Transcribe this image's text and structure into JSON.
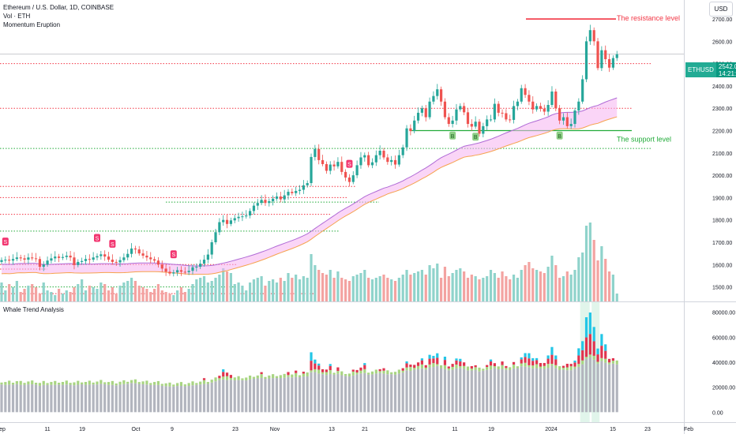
{
  "header": {
    "title": "Ethereum / U.S. Dollar, 1D, COINBASE",
    "indicator1": "Vol · ETH",
    "indicator2": "Momentum Eruption"
  },
  "lower_pane_title": "Whale Trend Analysis",
  "currency_button": "USD",
  "symbol_tag": {
    "symbol": "ETHUSD",
    "price": "2542.02",
    "countdown": "14:21:13"
  },
  "annotations": {
    "resistance": "The resistance level",
    "support": "The support level"
  },
  "signals": {
    "sell": "S",
    "buy": "B"
  },
  "colors": {
    "up": "#26a69a",
    "down": "#ef5350",
    "vol_up": "#8fd3cb",
    "vol_down": "#f3a3a1",
    "resistance": "#f23645",
    "support": "#22ab3a",
    "band_fill": "#f5b3f0",
    "band_upper": "#b06bd6",
    "band_lower": "#f6a34e",
    "whale_gray": "#b2b5be",
    "whale_green": "#a8d582",
    "whale_red": "#e0344e",
    "whale_cyan": "#23c6e6"
  },
  "chart_data": [
    {
      "type": "candlestick",
      "title": "Ethereum / U.S. Dollar, 1D, COINBASE",
      "x_ticks": [
        "ep",
        "11",
        "19",
        "Oct",
        "9",
        "23",
        "Nov",
        "13",
        "21",
        "Dec",
        "11",
        "19",
        "2024",
        "15",
        "23",
        "Feb"
      ],
      "y_ticks": [
        "2700.00",
        "2600.00",
        "2500.00",
        "2400.00",
        "2300.00",
        "2200.00",
        "2100.00",
        "2000.00",
        "1900.00",
        "1800.00",
        "1700.00",
        "1600.00",
        "1500.00"
      ],
      "ylim": [
        1435,
        2785
      ],
      "last_price": 2542.02,
      "resistance_level": 2700,
      "support_level": 2200,
      "close_series": [
        1620,
        1622,
        1618,
        1625,
        1632,
        1628,
        1622,
        1632,
        1628,
        1625,
        1590,
        1600,
        1618,
        1628,
        1636,
        1630,
        1634,
        1640,
        1632,
        1598,
        1612,
        1616,
        1625,
        1622,
        1632,
        1638,
        1646,
        1636,
        1622,
        1612,
        1610,
        1620,
        1632,
        1648,
        1672,
        1668,
        1650,
        1640,
        1632,
        1624,
        1618,
        1600,
        1582,
        1568,
        1560,
        1565,
        1575,
        1568,
        1566,
        1572,
        1588,
        1590,
        1604,
        1622,
        1645,
        1700,
        1745,
        1790,
        1800,
        1782,
        1798,
        1808,
        1814,
        1816,
        1820,
        1840,
        1864,
        1876,
        1890,
        1876,
        1884,
        1895,
        1905,
        1892,
        1910,
        1926,
        1920,
        1930,
        1935,
        1955,
        1965,
        2082,
        2118,
        2068,
        2050,
        2020,
        2048,
        2040,
        2060,
        2015,
        1990,
        1970,
        2000,
        2045,
        2080,
        2090,
        2045,
        2058,
        2090,
        2110,
        2080,
        2060,
        2068,
        2048,
        2090,
        2125,
        2210,
        2198,
        2245,
        2280,
        2300,
        2260,
        2330,
        2355,
        2385,
        2330,
        2260,
        2230,
        2245,
        2295,
        2310,
        2282,
        2230,
        2218,
        2240,
        2186,
        2220,
        2250,
        2250,
        2320,
        2280,
        2278,
        2250,
        2248,
        2310,
        2330,
        2390,
        2360,
        2330,
        2295,
        2310,
        2298,
        2285,
        2315,
        2375,
        2300,
        2245,
        2260,
        2220,
        2230,
        2290,
        2330,
        2430,
        2600,
        2650,
        2600,
        2480,
        2560,
        2520,
        2482,
        2525,
        2542
      ],
      "buy_signals_on_close_index": [
        118,
        124,
        146
      ],
      "sell_signals_on_close_index": [
        1,
        25,
        29,
        45,
        91
      ],
      "volume_series": [
        24,
        14,
        22,
        18,
        26,
        12,
        16,
        20,
        22,
        18,
        10,
        24,
        14,
        12,
        8,
        16,
        10,
        14,
        12,
        18,
        22,
        28,
        14,
        20,
        18,
        16,
        24,
        22,
        14,
        18,
        10,
        20,
        24,
        26,
        30,
        26,
        20,
        18,
        16,
        12,
        16,
        22,
        14,
        12,
        10,
        8,
        14,
        18,
        12,
        16,
        22,
        28,
        30,
        32,
        24,
        26,
        30,
        34,
        42,
        38,
        36,
        22,
        24,
        20,
        14,
        24,
        28,
        30,
        32,
        20,
        26,
        28,
        24,
        30,
        26,
        36,
        30,
        34,
        28,
        32,
        30,
        60,
        46,
        40,
        36,
        34,
        40,
        30,
        38,
        30,
        28,
        26,
        32,
        34,
        36,
        40,
        30,
        28,
        30,
        32,
        34,
        30,
        28,
        26,
        30,
        34,
        40,
        34,
        36,
        38,
        40,
        34,
        46,
        42,
        48,
        30,
        44,
        32,
        36,
        40,
        42,
        38,
        30,
        34,
        32,
        28,
        30,
        32,
        40,
        36,
        30,
        38,
        32,
        28,
        34,
        30,
        40,
        46,
        50,
        42,
        40,
        38,
        36,
        44,
        58,
        46,
        30,
        32,
        38,
        34,
        40,
        56,
        62,
        96,
        100,
        78,
        52,
        70,
        54,
        38,
        34,
        10
      ],
      "volume_ticks": []
    },
    {
      "type": "stacked_bar",
      "title": "Whale Trend Analysis",
      "y_ticks": [
        "80000.00",
        "60000.00",
        "40000.00",
        "20000.00",
        "0.00"
      ],
      "ylim": [
        -8000,
        88000
      ],
      "series_colors": [
        "#b2b5be",
        "#a8d582",
        "#e0344e",
        "#23c6e6"
      ],
      "note_series_order": [
        "gray",
        "green",
        "red",
        "cyan"
      ]
    }
  ]
}
